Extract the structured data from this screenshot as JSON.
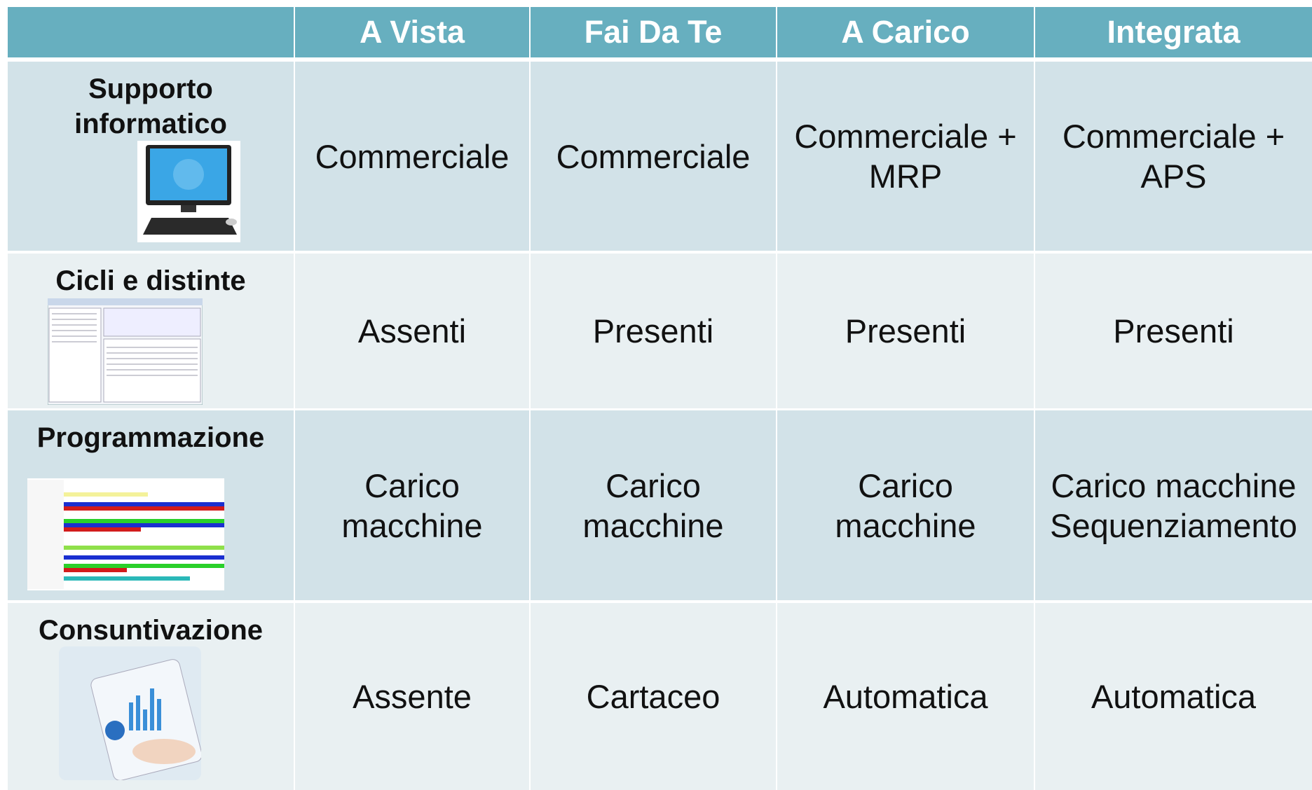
{
  "header": {
    "corner": null,
    "columns": [
      "A Vista",
      "Fai Da Te",
      "A Carico",
      "Integrata"
    ]
  },
  "rows": [
    {
      "label": [
        "Supporto",
        "informatico"
      ],
      "cells": [
        [
          "Commerciale"
        ],
        [
          "Commerciale"
        ],
        [
          "Commerciale +",
          "MRP"
        ],
        [
          "Commerciale +",
          "APS"
        ]
      ]
    },
    {
      "label": [
        "Cicli e distinte"
      ],
      "cells": [
        [
          "Assenti"
        ],
        [
          "Presenti"
        ],
        [
          "Presenti"
        ],
        [
          "Presenti"
        ]
      ]
    },
    {
      "label": [
        "Programmazione"
      ],
      "cells": [
        [
          "Carico",
          "macchine"
        ],
        [
          "Carico",
          "macchine"
        ],
        [
          "Carico",
          "macchine"
        ],
        [
          "Carico macchine",
          "Sequenziamento"
        ]
      ]
    },
    {
      "label": [
        "Consuntivazione"
      ],
      "cells": [
        [
          "Assente"
        ],
        [
          "Cartaceo"
        ],
        [
          "Automatica"
        ],
        [
          "Automatica"
        ]
      ]
    }
  ]
}
